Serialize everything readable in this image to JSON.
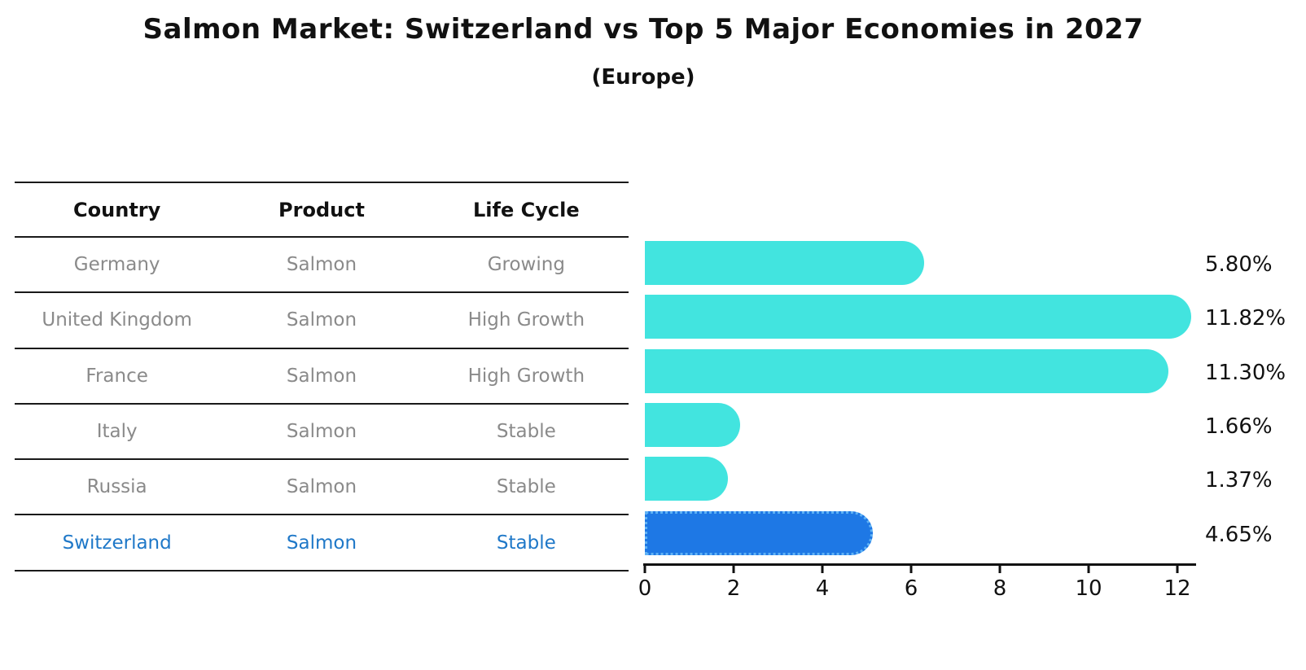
{
  "title": "Salmon Market: Switzerland vs Top 5 Major Economies in 2027",
  "subtitle": "(Europe)",
  "table": {
    "headers": [
      "Country",
      "Product",
      "Life Cycle"
    ],
    "rows": [
      {
        "country": "Germany",
        "product": "Salmon",
        "life_cycle": "Growing",
        "highlight": false
      },
      {
        "country": "United Kingdom",
        "product": "Salmon",
        "life_cycle": "High Growth",
        "highlight": false
      },
      {
        "country": "France",
        "product": "Salmon",
        "life_cycle": "High Growth",
        "highlight": false
      },
      {
        "country": "Italy",
        "product": "Salmon",
        "life_cycle": "Stable",
        "highlight": false
      },
      {
        "country": "Russia",
        "product": "Salmon",
        "life_cycle": "Stable",
        "highlight": false
      },
      {
        "country": "Switzerland",
        "product": "Salmon",
        "life_cycle": "Stable",
        "highlight": true
      }
    ]
  },
  "chart_data": {
    "type": "bar",
    "orientation": "horizontal",
    "title": "Salmon Market: Switzerland vs Top 5 Major Economies in 2027",
    "subtitle": "(Europe)",
    "categories": [
      "Germany",
      "United Kingdom",
      "France",
      "Italy",
      "Russia",
      "Switzerland"
    ],
    "values": [
      5.8,
      11.82,
      11.3,
      1.66,
      1.37,
      4.65
    ],
    "value_labels": [
      "5.80%",
      "11.82%",
      "11.30%",
      "1.66%",
      "1.37%",
      "4.65%"
    ],
    "x_ticks": [
      0,
      2,
      4,
      6,
      8,
      10,
      12
    ],
    "xlim": [
      0,
      12.45
    ],
    "grid": false,
    "legend_position": "none",
    "bar_color": "#42e4df",
    "highlight_color": "#1e78e5",
    "highlight_index": 5
  },
  "colors": {
    "row_text": "#8a8a8a",
    "highlight_text": "#1f78c8",
    "axis_line": "#111111",
    "highlight_border": "#5fb2f5"
  }
}
